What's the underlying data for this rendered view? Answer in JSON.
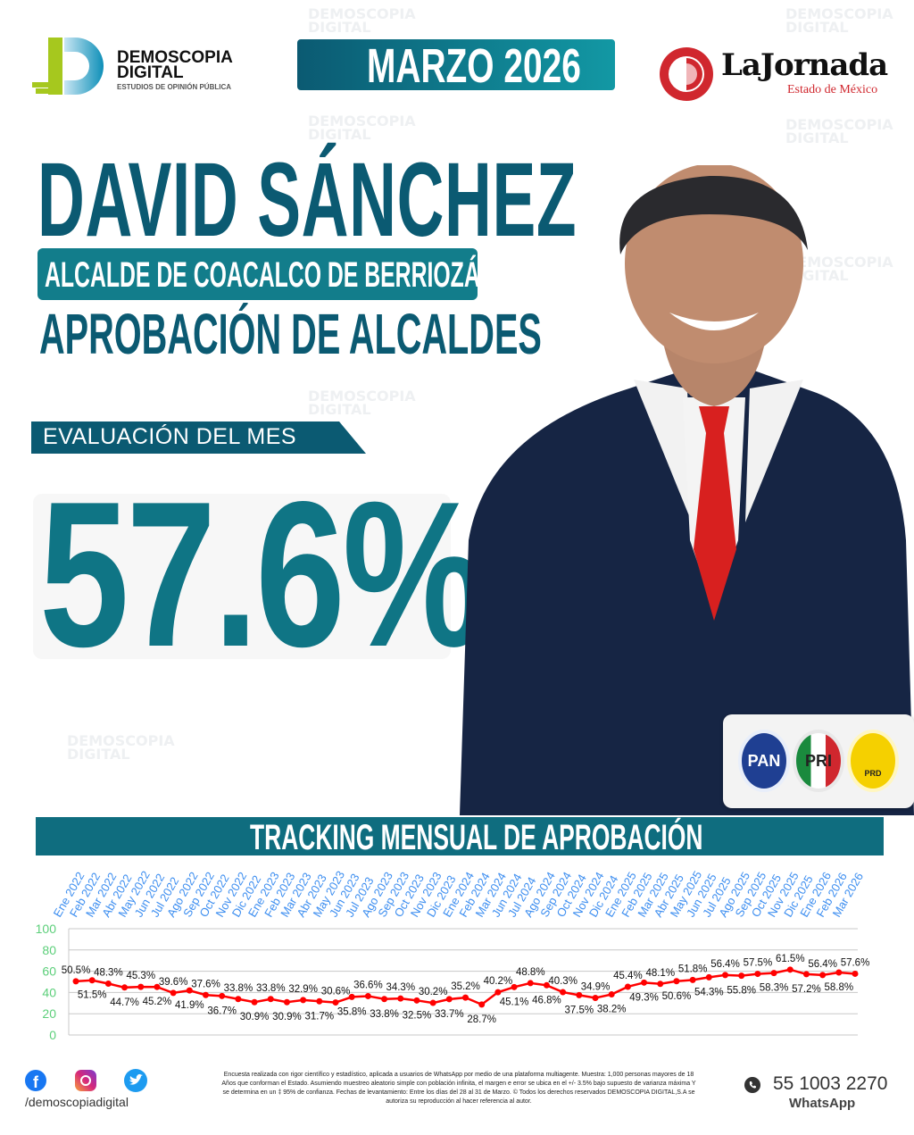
{
  "header": {
    "brand_name_1": "DEMOSCOPIA",
    "brand_name_2": "DIGITAL",
    "brand_tagline": "ESTUDIOS DE OPINIÓN PÚBLICA",
    "date_badge": "MARZO 2026",
    "partner_name": "LaJornada",
    "partner_sub": "Estado de México"
  },
  "main": {
    "name": "DAVID SÁNCHEZ",
    "position": "ALCALDE DE COACALCO DE BERRIOZÁBAL",
    "survey": "APROBACIÓN DE ALCALDES",
    "eval_label": "EVALUACIÓN DEL MES",
    "eval_value": "57.6%",
    "parties": [
      "PAN",
      "PRI",
      "PRD"
    ]
  },
  "tracking": {
    "title": "TRACKING MENSUAL DE APROBACIÓN"
  },
  "chart_data": {
    "type": "line",
    "categories": [
      "Ene 2022",
      "Feb 2022",
      "Mar 2022",
      "Abr 2022",
      "May 2022",
      "Jun 2022",
      "Jul 2022",
      "Ago 2022",
      "Sep 2022",
      "Oct 2022",
      "Nov 2022",
      "Dic 2022",
      "Ene 2023",
      "Feb 2023",
      "Mar 2023",
      "Abr 2023",
      "May 2023",
      "Jun 2023",
      "Jul 2023",
      "Ago 2023",
      "Sep 2023",
      "Oct 2023",
      "Nov 2023",
      "Dic 2023",
      "Ene 2024",
      "Feb 2024",
      "Mar 2024",
      "Jun 2024",
      "Jul 2024",
      "Ago 2024",
      "Sep 2024",
      "Oct 2024",
      "Nov 2024",
      "Dic 2024",
      "Ene 2025",
      "Feb 2025",
      "Mar 2025",
      "Abr 2025",
      "May 2025",
      "Jun 2025",
      "Jul 2025",
      "Ago 2025",
      "Sep 2025",
      "Oct 2025",
      "Nov 2025",
      "Dic 2025",
      "Ene 2026",
      "Feb 2026",
      "Mar 2026"
    ],
    "values": [
      50.5,
      51.5,
      48.3,
      44.7,
      45.3,
      45.2,
      39.6,
      41.9,
      37.6,
      36.7,
      33.8,
      30.9,
      33.8,
      30.9,
      32.9,
      31.7,
      30.6,
      35.8,
      36.6,
      33.8,
      34.3,
      32.5,
      30.2,
      33.7,
      35.2,
      28.7,
      40.2,
      45.1,
      48.8,
      46.8,
      40.3,
      37.5,
      34.9,
      38.2,
      45.4,
      49.3,
      48.1,
      50.6,
      51.8,
      54.3,
      56.4,
      55.8,
      57.5,
      58.3,
      61.5,
      57.2,
      56.4,
      58.8,
      57.6
    ],
    "yticks": [
      "0",
      "20",
      "40",
      "60",
      "80",
      "100"
    ],
    "ylim": [
      0,
      100
    ],
    "grid": true,
    "line_color": "#ff0000",
    "tick_color": "#3d8ef0",
    "ytick_color": "#5ccf7a"
  },
  "footer": {
    "handle": "/demoscopiadigital",
    "disclaimer": "Encuesta realizada con rigor científico y estadístico, aplicada a usuarios de WhatsApp por medio de una plataforma multiagente. Muestra: 1,000 personas mayores de 18 Años que conforman el Estado. Asumiendo muestreo aleatorio simple con población infinita, el margen e error se ubica en el +/- 3.5% bajo supuesto de varianza máxima Y se determina en un ‡ 95% de confianza. Fechas de levantamiento: Entre los días del 28 al 31 de Marzo. © Todos los derechos reservados DEMOSCOPIA DIGITAL,S.A se autoriza su reproducción al hacer referencia al autor.",
    "phone": "55 1003 2270",
    "phone_label": "WhatsApp"
  },
  "colors": {
    "primary": "#0b5a72",
    "accent": "#127d8b",
    "lime": "#a6c81e",
    "red": "#d0272e"
  }
}
